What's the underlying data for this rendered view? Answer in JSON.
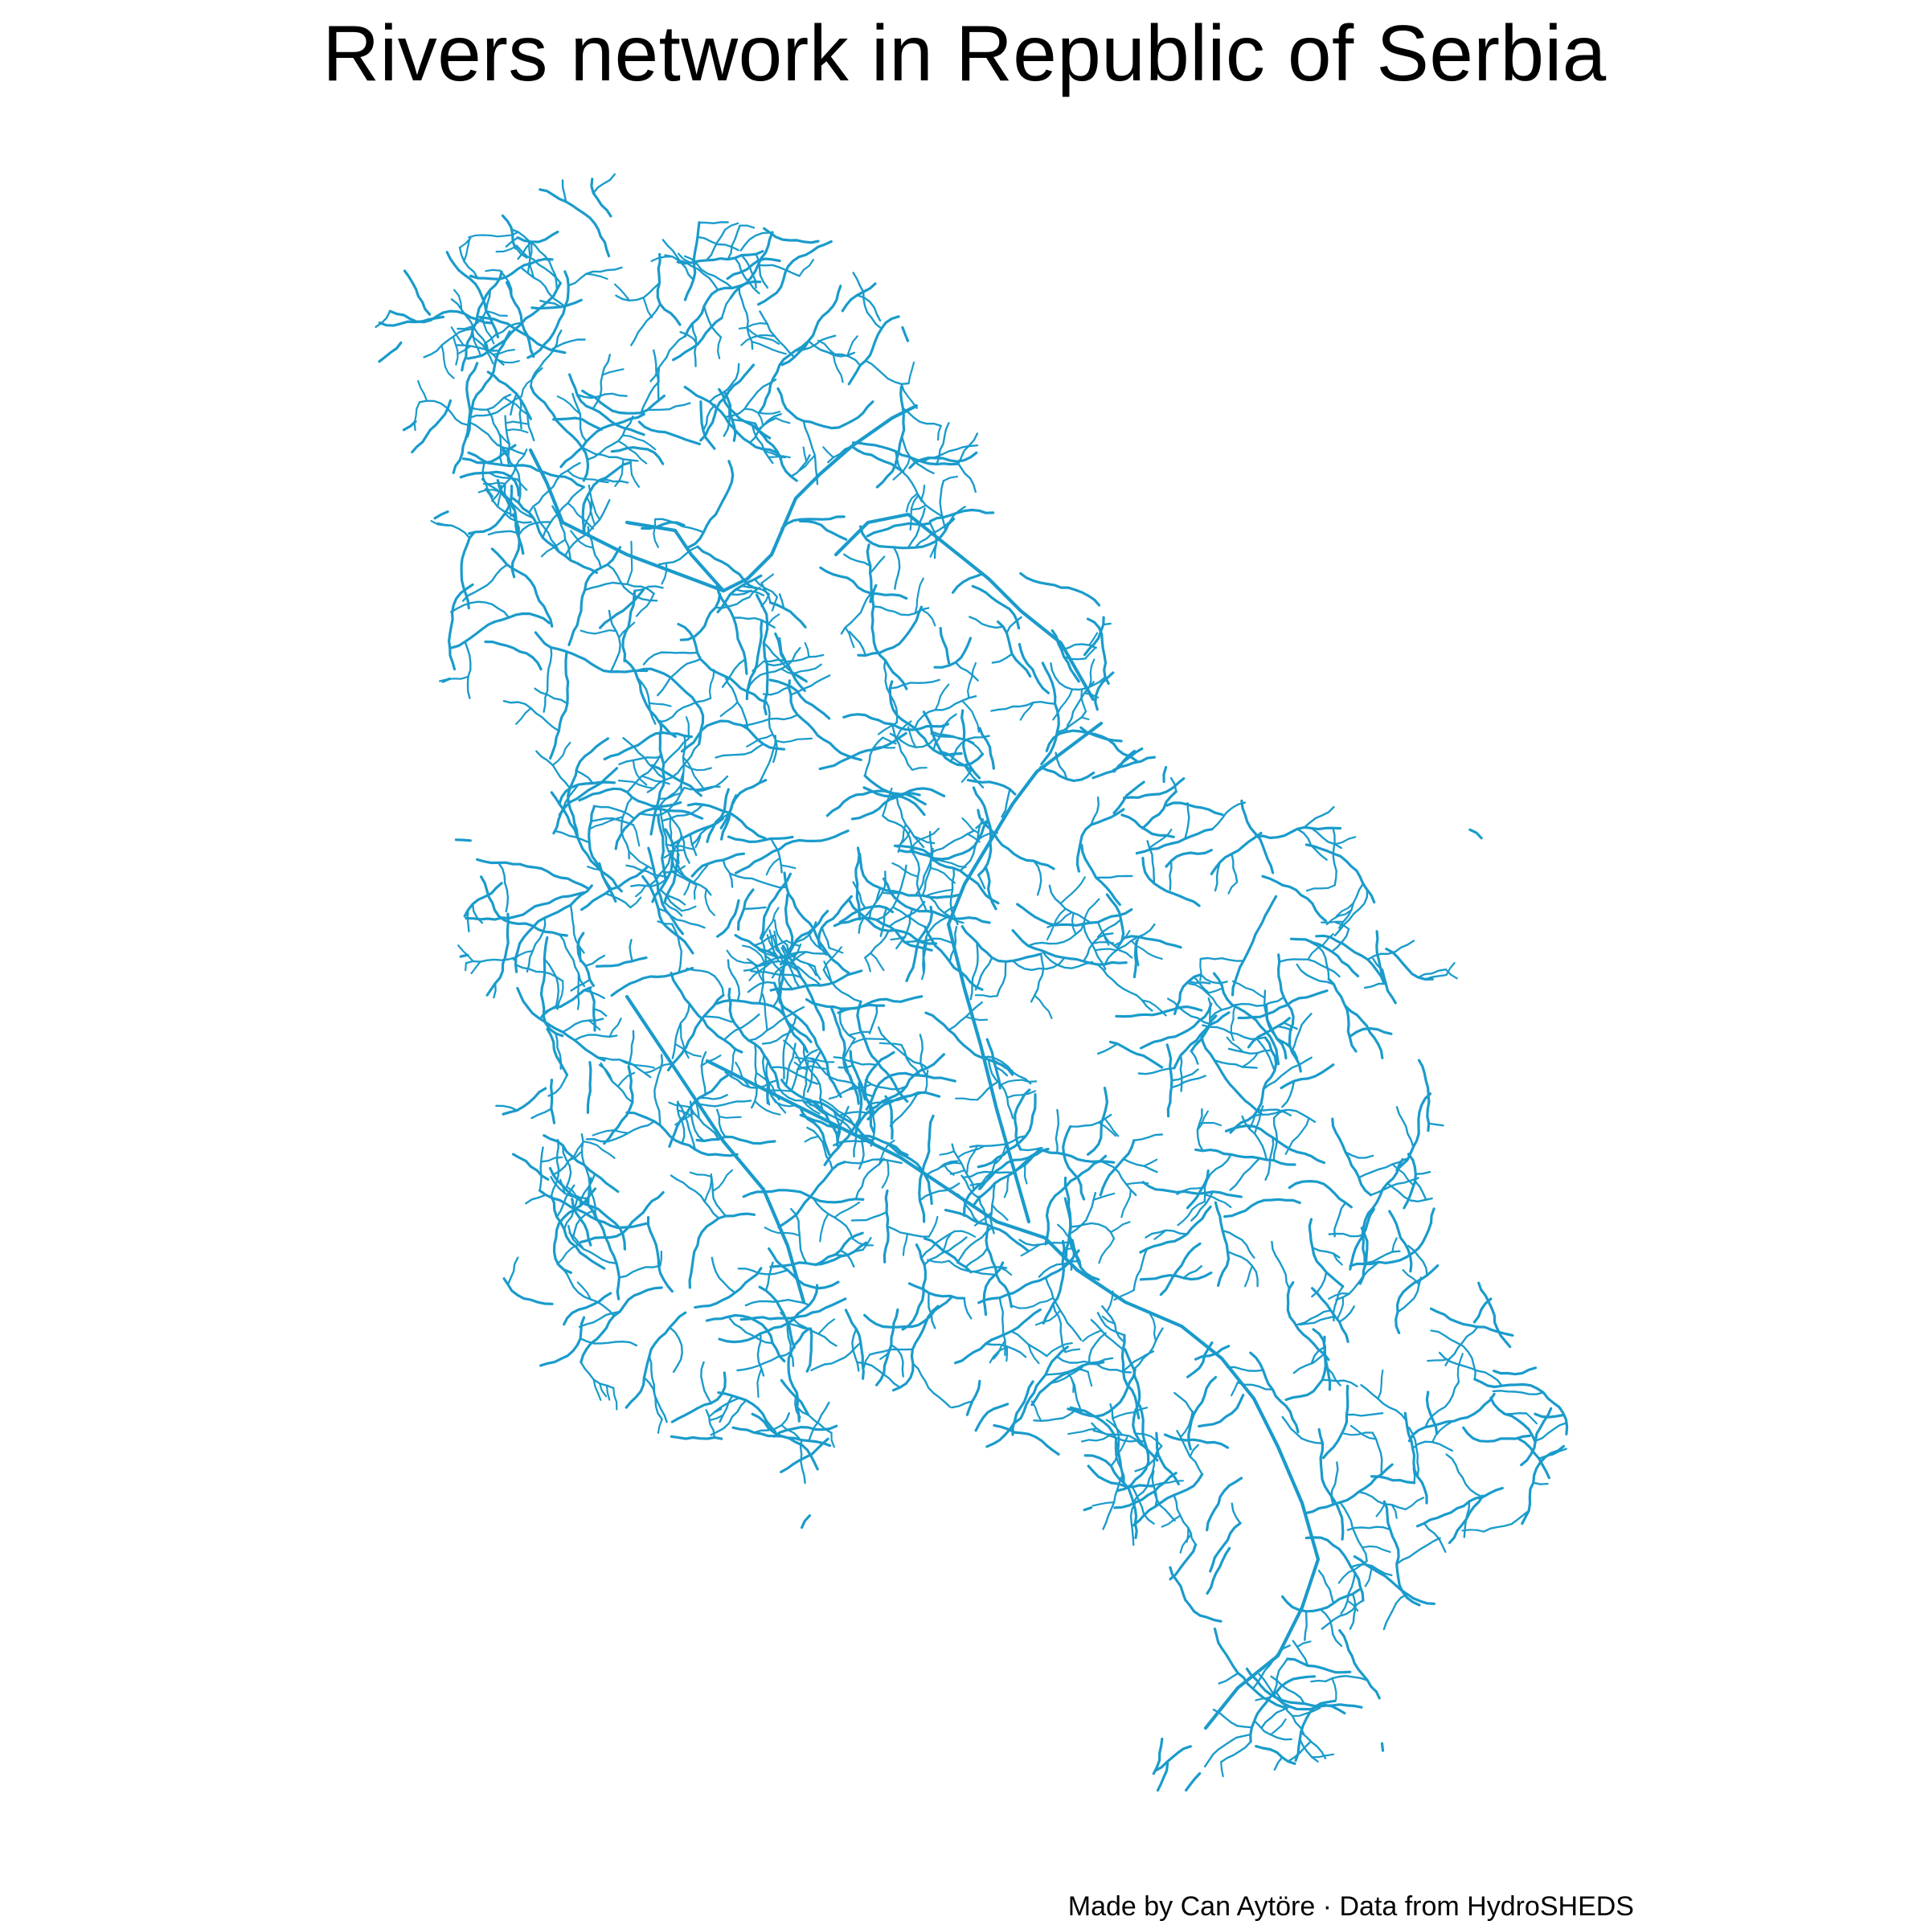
{
  "map": {
    "title": "Rivers network in Republic of Serbia",
    "caption": "Made by Can Aytöre · Data from HydroSHEDS",
    "river_color": "#1a9bcb",
    "background_color": "#ffffff",
    "features": [
      "river-network",
      "serbia-outline-implied-by-rivers"
    ]
  }
}
